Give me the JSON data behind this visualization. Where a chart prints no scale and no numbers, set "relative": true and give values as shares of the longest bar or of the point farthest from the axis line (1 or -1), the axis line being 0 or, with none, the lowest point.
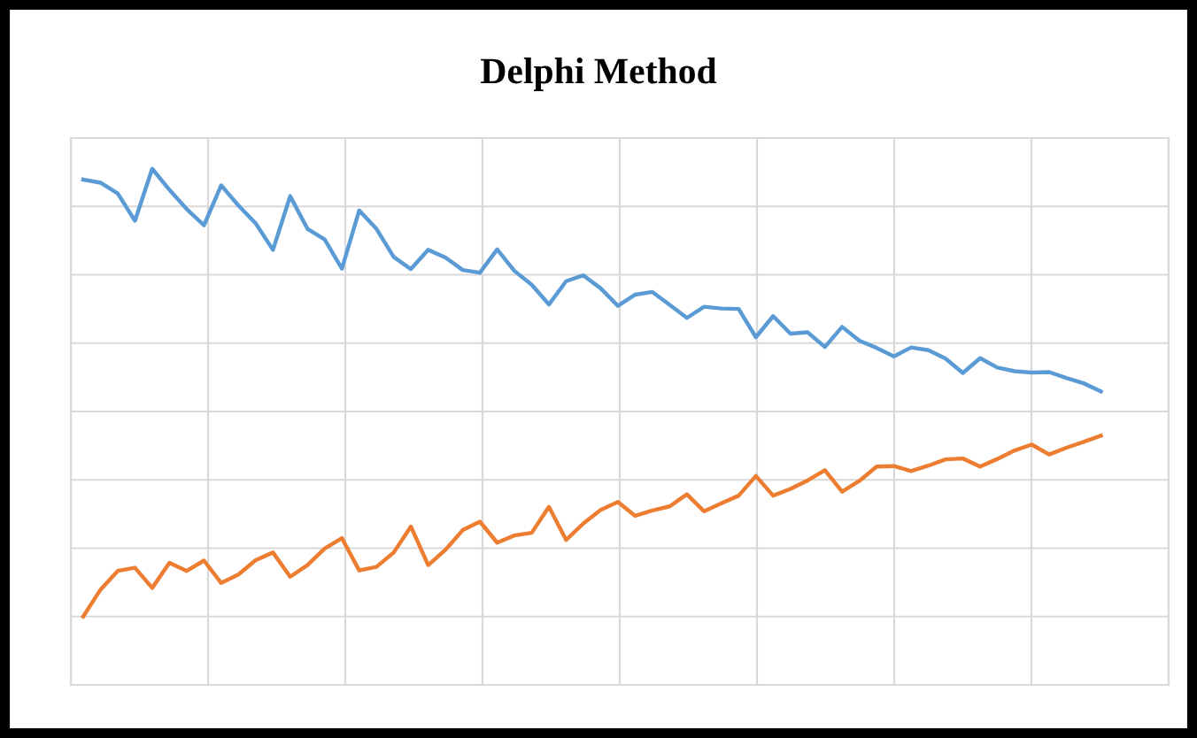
{
  "chart_data": {
    "type": "line",
    "title": "Delphi Method",
    "relative": true,
    "grid": true,
    "categories": [
      null,
      null,
      null,
      null,
      null,
      null,
      null,
      null,
      null,
      null,
      null,
      null,
      null,
      null,
      null,
      null,
      null,
      null,
      null,
      null,
      null,
      null,
      null,
      null,
      null,
      null,
      null,
      null,
      null,
      null,
      null,
      null,
      null,
      null,
      null,
      null,
      null,
      null,
      null,
      null,
      null,
      null,
      null,
      null,
      null,
      null,
      null,
      null,
      null,
      null,
      null,
      null,
      null,
      null,
      null,
      null,
      null,
      null,
      null,
      null
    ],
    "series": [
      {
        "color": "#5b9bd5",
        "values": [
          0.976,
          0.969,
          0.945,
          0.884,
          1.0,
          0.953,
          0.91,
          0.874,
          0.963,
          0.918,
          0.878,
          0.819,
          0.939,
          0.866,
          0.842,
          0.777,
          0.907,
          0.866,
          0.803,
          0.776,
          0.819,
          0.802,
          0.774,
          0.768,
          0.82,
          0.772,
          0.741,
          0.697,
          0.749,
          0.762,
          0.733,
          0.694,
          0.719,
          0.725,
          0.696,
          0.667,
          0.692,
          0.688,
          0.687,
          0.624,
          0.671,
          0.632,
          0.635,
          0.602,
          0.647,
          0.616,
          0.6,
          0.581,
          0.601,
          0.595,
          0.576,
          0.544,
          0.577,
          0.556,
          0.548,
          0.545,
          0.546,
          0.533,
          0.521,
          0.503
        ]
      },
      {
        "color": "#ed7d31",
        "values": [
          0.0,
          0.06,
          0.102,
          0.109,
          0.064,
          0.12,
          0.102,
          0.125,
          0.075,
          0.094,
          0.126,
          0.143,
          0.089,
          0.115,
          0.152,
          0.175,
          0.103,
          0.111,
          0.143,
          0.201,
          0.115,
          0.149,
          0.193,
          0.212,
          0.165,
          0.181,
          0.187,
          0.245,
          0.171,
          0.208,
          0.238,
          0.256,
          0.225,
          0.237,
          0.246,
          0.273,
          0.235,
          0.253,
          0.27,
          0.314,
          0.27,
          0.285,
          0.304,
          0.327,
          0.279,
          0.303,
          0.335,
          0.336,
          0.325,
          0.337,
          0.351,
          0.353,
          0.335,
          0.352,
          0.371,
          0.384,
          0.362,
          0.377,
          0.39,
          0.404
        ]
      }
    ]
  }
}
